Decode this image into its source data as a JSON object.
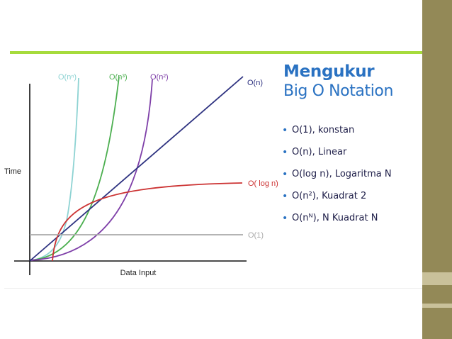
{
  "colors": {
    "page_background": "#ffffff",
    "strip_dark": "#938957",
    "strip_light": "#c9c19a",
    "top_rule": "#a6db3c",
    "title": "#2a72c2",
    "axis": "#111111",
    "bullet_text": "#20204a",
    "bullet_dot": "#2a72c2"
  },
  "title": {
    "line1": "Mengukur",
    "line2": "Big O Notation"
  },
  "bullets": [
    "O(1), konstan",
    "O(n), Linear",
    "O(log n), Logaritma N",
    "O(n²), Kuadrat 2",
    "O(nᴺ), N Kuadrat N"
  ],
  "chart_data": {
    "type": "line",
    "title": "",
    "xlabel": "Data Input",
    "ylabel": "Time",
    "series": [
      {
        "name": "O(nⁿ)",
        "shape": "exponential",
        "color": "#8ed3d3"
      },
      {
        "name": "O(n³)",
        "shape": "cubic",
        "color": "#4caf50"
      },
      {
        "name": "O(n²)",
        "shape": "quadratic",
        "color": "#7e3fa8"
      },
      {
        "name": "O(n)",
        "shape": "linear",
        "color": "#2e3280"
      },
      {
        "name": "O( log n)",
        "shape": "logarithmic",
        "color": "#cc3333"
      },
      {
        "name": "O(1)",
        "shape": "constant",
        "color": "#aaaaaa"
      }
    ]
  }
}
